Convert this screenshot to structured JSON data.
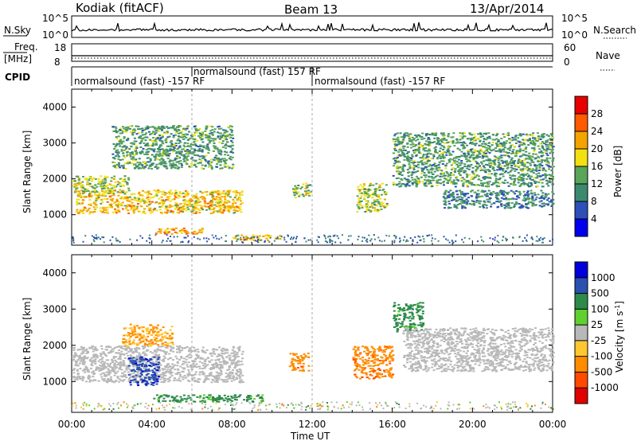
{
  "header": {
    "station": "Kodiak (fitACF)",
    "beam": "Beam 13",
    "date": "13/Apr/2014"
  },
  "nsky_panel": {
    "left_label": "N.Sky",
    "right_label": "N.Search",
    "left_ticks": [
      "10^5",
      "10^0"
    ],
    "right_ticks": [
      "10^5",
      "10^0"
    ]
  },
  "freq_panel": {
    "left_label": "Freq.",
    "left_unit": "[MHz]",
    "right_label": "Nave",
    "left_ticks": [
      "18",
      "8"
    ],
    "right_ticks": [
      "60",
      "0"
    ]
  },
  "cpid": {
    "label": "CPID",
    "segments": [
      {
        "text": "normalsound (fast) -157 RF",
        "start_hour": 0,
        "end_hour": 6
      },
      {
        "text": "normalsound (fast) 157 RF",
        "start_hour": 6,
        "end_hour": 12
      },
      {
        "text": "normalsound (fast) -157 RF",
        "start_hour": 12,
        "end_hour": 24
      }
    ]
  },
  "power_colorbar": {
    "label": "Power [dB]",
    "ticks": [
      "28",
      "24",
      "20",
      "16",
      "12",
      "8",
      "4"
    ],
    "colors": [
      "#0000ee",
      "#2d4fb8",
      "#3c8a6e",
      "#59a55a",
      "#f2e010",
      "#f4a400",
      "#ff5a00",
      "#e60000"
    ]
  },
  "velocity_colorbar": {
    "label": "Velocity [m s",
    "label_sup": "-1",
    "label_end": "]",
    "ticks": [
      "1000",
      "500",
      "100",
      "25",
      "-25",
      "-100",
      "-500",
      "-1000"
    ],
    "colors": [
      "#0000dd",
      "#2a50b0",
      "#2d8a4a",
      "#5fd030",
      "#b8b8b8",
      "#ffc830",
      "#ff8c00",
      "#ff4a00",
      "#e00000"
    ]
  },
  "chart_data": [
    {
      "type": "heatmap",
      "name": "power",
      "ylabel": "Slant Range [km]",
      "xlabel": "",
      "ylim": [
        150,
        4500
      ],
      "xlim": [
        0,
        24
      ],
      "y_ticks": [
        "1000",
        "2000",
        "3000",
        "4000"
      ],
      "y_tick_values": [
        1000,
        2000,
        3000,
        4000
      ],
      "x_ticks": [
        "00:00",
        "04:00",
        "08:00",
        "12:00",
        "16:00",
        "20:00",
        "00:00"
      ],
      "x_tick_values": [
        0,
        4,
        8,
        12,
        16,
        20,
        24
      ],
      "echo_bands": [
        {
          "t0": 0.2,
          "t1": 8.5,
          "r0": 1050,
          "r1": 1700,
          "power_db": 20
        },
        {
          "t0": 0.0,
          "t1": 2.8,
          "r0": 1600,
          "r1": 2100,
          "power_db": 16
        },
        {
          "t0": 2.0,
          "t1": 8.0,
          "r0": 2300,
          "r1": 3500,
          "power_db": 12
        },
        {
          "t0": 4.0,
          "t1": 6.5,
          "r0": 480,
          "r1": 650,
          "power_db": 22
        },
        {
          "t0": 8.0,
          "t1": 10.5,
          "r0": 300,
          "r1": 450,
          "power_db": 20
        },
        {
          "t0": 11.0,
          "t1": 11.9,
          "r0": 1500,
          "r1": 1900,
          "power_db": 16
        },
        {
          "t0": 14.2,
          "t1": 15.7,
          "r0": 1100,
          "r1": 1900,
          "power_db": 16
        },
        {
          "t0": 16.0,
          "t1": 24.0,
          "r0": 1800,
          "r1": 3300,
          "power_db": 12
        },
        {
          "t0": 18.5,
          "t1": 24.0,
          "r0": 1200,
          "r1": 1700,
          "power_db": 10
        }
      ]
    },
    {
      "type": "heatmap",
      "name": "velocity",
      "ylabel": "Slant Range [km]",
      "xlabel": "Time UT",
      "ylim": [
        150,
        4500
      ],
      "xlim": [
        0,
        24
      ],
      "y_ticks": [
        "1000",
        "2000",
        "3000",
        "4000"
      ],
      "y_tick_values": [
        1000,
        2000,
        3000,
        4000
      ],
      "x_ticks": [
        "00:00",
        "04:00",
        "08:00",
        "12:00",
        "16:00",
        "20:00",
        "00:00"
      ],
      "x_tick_values": [
        0,
        4,
        8,
        12,
        16,
        20,
        24
      ],
      "echo_bands": [
        {
          "t0": 0.0,
          "t1": 8.5,
          "r0": 1000,
          "r1": 2000,
          "velocity": 0
        },
        {
          "t0": 2.8,
          "t1": 4.3,
          "r0": 900,
          "r1": 1700,
          "velocity": 800
        },
        {
          "t0": 4.0,
          "t1": 9.5,
          "r0": 450,
          "r1": 650,
          "velocity": 150
        },
        {
          "t0": 2.5,
          "t1": 5.0,
          "r0": 2000,
          "r1": 2600,
          "velocity": -100
        },
        {
          "t0": 10.8,
          "t1": 11.8,
          "r0": 1300,
          "r1": 1800,
          "velocity": -400
        },
        {
          "t0": 14.0,
          "t1": 16.0,
          "r0": 1100,
          "r1": 2000,
          "velocity": -400
        },
        {
          "t0": 16.0,
          "t1": 17.5,
          "r0": 2400,
          "r1": 3200,
          "velocity": 150
        },
        {
          "t0": 16.5,
          "t1": 24.0,
          "r0": 1300,
          "r1": 2500,
          "velocity": 0
        }
      ]
    }
  ]
}
